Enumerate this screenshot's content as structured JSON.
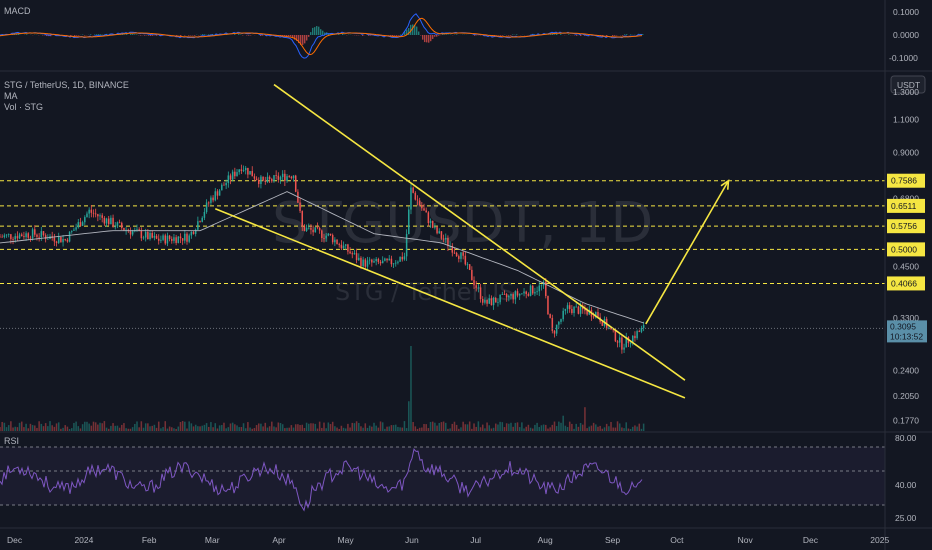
{
  "panes": {
    "macd": {
      "label": "MACD",
      "ticks": [
        "0.1000",
        "0.0000",
        "-0.1000"
      ]
    },
    "main": {
      "title": "STG / TetherUS, 1D, BINANCE",
      "indicator_1": "MA",
      "indicator_2": "Vol · STG",
      "currency_button": "USDT",
      "watermark_symbol": "STGUSDT, 1D",
      "watermark_name": "STG / TetherUS",
      "price_ticks": [
        "1.3000",
        "1.1000",
        "0.9000",
        "0.6800",
        "0.4500",
        "0.3300",
        "0.2400",
        "0.2050",
        "0.1770"
      ],
      "last_price": "0.3095",
      "countdown": "10:13:52"
    },
    "rsi": {
      "label": "RSI",
      "ticks": [
        "80.00",
        "40.00",
        "25.00"
      ]
    }
  },
  "time_axis": [
    "Dec",
    "2024",
    "Feb",
    "Mar",
    "Apr",
    "May",
    "Jun",
    "Jul",
    "Aug",
    "Sep",
    "Oct",
    "Nov",
    "Dec",
    "2025"
  ],
  "chart_data": {
    "type": "candlestick",
    "title": "STG / TetherUS, 1D, BINANCE",
    "x_range": [
      "2023-11-25",
      "2025-01-05"
    ],
    "y_scale": "log",
    "y_range": [
      0.165,
      1.45
    ],
    "colors": {
      "up": "#26a69a",
      "down": "#ef5350",
      "ma": "#b2b5be",
      "levels": "#f5e642",
      "trendlines": "#f5e642",
      "macd": "#2962ff",
      "signal": "#ff6d00",
      "rsi": "#7e57c2"
    },
    "close_path": [
      {
        "date": "2023-11-25",
        "close": 0.54
      },
      {
        "date": "2023-12-10",
        "close": 0.55
      },
      {
        "date": "2023-12-25",
        "close": 0.53
      },
      {
        "date": "2024-01-05",
        "close": 0.63
      },
      {
        "date": "2024-01-20",
        "close": 0.57
      },
      {
        "date": "2024-02-05",
        "close": 0.53
      },
      {
        "date": "2024-02-20",
        "close": 0.54
      },
      {
        "date": "2024-03-01",
        "close": 0.68
      },
      {
        "date": "2024-03-15",
        "close": 0.83
      },
      {
        "date": "2024-03-25",
        "close": 0.75
      },
      {
        "date": "2024-04-08",
        "close": 0.79
      },
      {
        "date": "2024-04-12",
        "close": 0.57
      },
      {
        "date": "2024-04-25",
        "close": 0.54
      },
      {
        "date": "2024-05-10",
        "close": 0.46
      },
      {
        "date": "2024-05-22",
        "close": 0.46
      },
      {
        "date": "2024-05-29",
        "close": 0.48
      },
      {
        "date": "2024-06-01",
        "close": 0.72
      },
      {
        "date": "2024-06-12",
        "close": 0.56
      },
      {
        "date": "2024-06-24",
        "close": 0.48
      },
      {
        "date": "2024-07-05",
        "close": 0.36
      },
      {
        "date": "2024-07-20",
        "close": 0.38
      },
      {
        "date": "2024-08-01",
        "close": 0.4
      },
      {
        "date": "2024-08-05",
        "close": 0.3
      },
      {
        "date": "2024-08-12",
        "close": 0.35
      },
      {
        "date": "2024-08-25",
        "close": 0.34
      },
      {
        "date": "2024-09-06",
        "close": 0.28
      },
      {
        "date": "2024-09-16",
        "close": 0.3095
      }
    ],
    "ma": [
      {
        "date": "2023-11-25",
        "value": 0.52
      },
      {
        "date": "2024-01-15",
        "value": 0.56
      },
      {
        "date": "2024-02-25",
        "value": 0.56
      },
      {
        "date": "2024-04-05",
        "value": 0.71
      },
      {
        "date": "2024-05-15",
        "value": 0.55
      },
      {
        "date": "2024-06-15",
        "value": 0.52
      },
      {
        "date": "2024-07-20",
        "value": 0.44
      },
      {
        "date": "2024-08-20",
        "value": 0.36
      },
      {
        "date": "2024-09-16",
        "value": 0.32
      }
    ],
    "levels": [
      0.7586,
      0.6511,
      0.5756,
      0.5,
      0.4066
    ],
    "trendlines": [
      {
        "name": "falling wedge upper",
        "from": {
          "date": "2024-03-30",
          "price": 1.36
        },
        "to": {
          "date": "2024-10-05",
          "price": 0.226
        }
      },
      {
        "name": "falling wedge lower",
        "from": {
          "date": "2024-03-03",
          "price": 0.64
        },
        "to": {
          "date": "2024-10-05",
          "price": 0.203
        }
      }
    ],
    "projection": {
      "from": {
        "date": "2024-09-17",
        "price": 0.318
      },
      "to": {
        "date": "2024-10-25",
        "price": 0.7586
      }
    },
    "volume_spikes": [
      {
        "date": "2024-06-01",
        "level": 1.0
      },
      {
        "date": "2024-08-20",
        "level": 0.28
      },
      {
        "date": "2024-08-10",
        "level": 0.18
      },
      {
        "date": "2024-05-31",
        "level": 0.35
      }
    ],
    "macd": {
      "peak_high_date": "2024-06-03",
      "peak_low_date": "2024-04-13"
    },
    "rsi_range": [
      20,
      85
    ]
  }
}
